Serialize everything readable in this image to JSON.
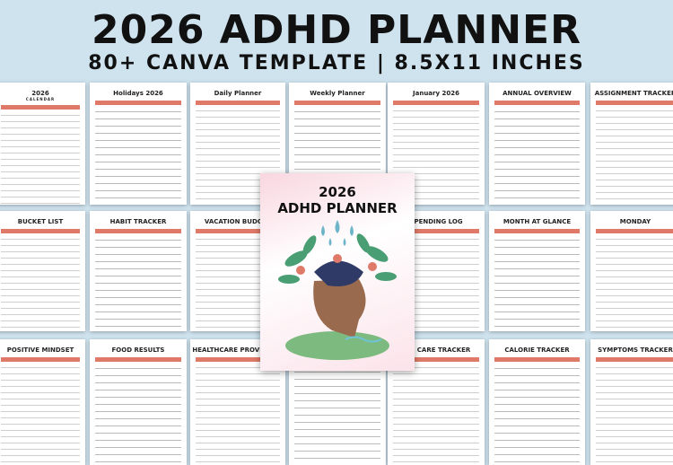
{
  "header": {
    "title": "2026 ADHD PLANNER",
    "subtitle": "80+ CANVA TEMPLATE | 8.5X11 INCHES"
  },
  "colors": {
    "background": "#cfe3ef",
    "accent": "#e07a68"
  },
  "cover": {
    "line1": "2026",
    "line2": "ADHD PLANNER",
    "illustration": "head-with-leaves-and-raindrops"
  },
  "pages": [
    {
      "title": "2026",
      "subtitle": "CALENDAR"
    },
    {
      "title": "Holidays 2026"
    },
    {
      "title": "Daily Planner"
    },
    {
      "title": "Weekly Planner"
    },
    {
      "title": "January 2026"
    },
    {
      "title": "ANNUAL OVERVIEW"
    },
    {
      "title": "ASSIGNMENT TRACKER"
    },
    {
      "title": "BUCKET LIST"
    },
    {
      "title": "HABIT TRACKER"
    },
    {
      "title": "VACATION BUDGET"
    },
    {
      "title": ""
    },
    {
      "title": "SPENDING LOG"
    },
    {
      "title": "MONTH AT GLANCE"
    },
    {
      "title": "MONDAY"
    },
    {
      "title": "POSITIVE MINDSET"
    },
    {
      "title": "FOOD RESULTS"
    },
    {
      "title": "HEALTHCARE PROVIDER V"
    },
    {
      "title": ""
    },
    {
      "title": "EYE CARE TRACKER"
    },
    {
      "title": "CALORIE TRACKER"
    },
    {
      "title": "SYMPTOMS TRACKER"
    }
  ]
}
